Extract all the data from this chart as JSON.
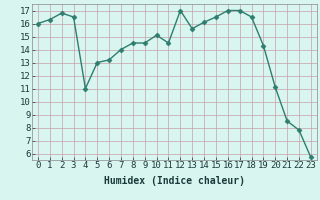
{
  "x": [
    0,
    1,
    2,
    3,
    4,
    5,
    6,
    7,
    8,
    9,
    10,
    11,
    12,
    13,
    14,
    15,
    16,
    17,
    18,
    19,
    20,
    21,
    22,
    23
  ],
  "y": [
    16.0,
    16.3,
    16.8,
    16.5,
    11.0,
    13.0,
    13.2,
    14.0,
    14.5,
    14.5,
    15.1,
    14.5,
    17.0,
    15.6,
    16.1,
    16.5,
    17.0,
    17.0,
    16.5,
    14.3,
    11.1,
    8.5,
    7.8,
    5.7
  ],
  "line_color": "#2e7d6e",
  "marker_color": "#2e7d6e",
  "bg_color": "#d8f5f0",
  "grid_color": "#c8a0a8",
  "xlabel": "Humidex (Indice chaleur)",
  "xlim": [
    -0.5,
    23.5
  ],
  "ylim": [
    5.5,
    17.5
  ],
  "yticks": [
    6,
    7,
    8,
    9,
    10,
    11,
    12,
    13,
    14,
    15,
    16,
    17
  ],
  "xticks": [
    0,
    1,
    2,
    3,
    4,
    5,
    6,
    7,
    8,
    9,
    10,
    11,
    12,
    13,
    14,
    15,
    16,
    17,
    18,
    19,
    20,
    21,
    22,
    23
  ],
  "xtick_labels": [
    "0",
    "1",
    "2",
    "3",
    "4",
    "5",
    "6",
    "7",
    "8",
    "9",
    "10",
    "11",
    "12",
    "13",
    "14",
    "15",
    "16",
    "17",
    "18",
    "19",
    "20",
    "21",
    "22",
    "23"
  ],
  "xlabel_fontsize": 7,
  "tick_fontsize": 6.5,
  "marker_size": 2.5,
  "line_width": 1.0,
  "text_color": "#1a3a3a"
}
